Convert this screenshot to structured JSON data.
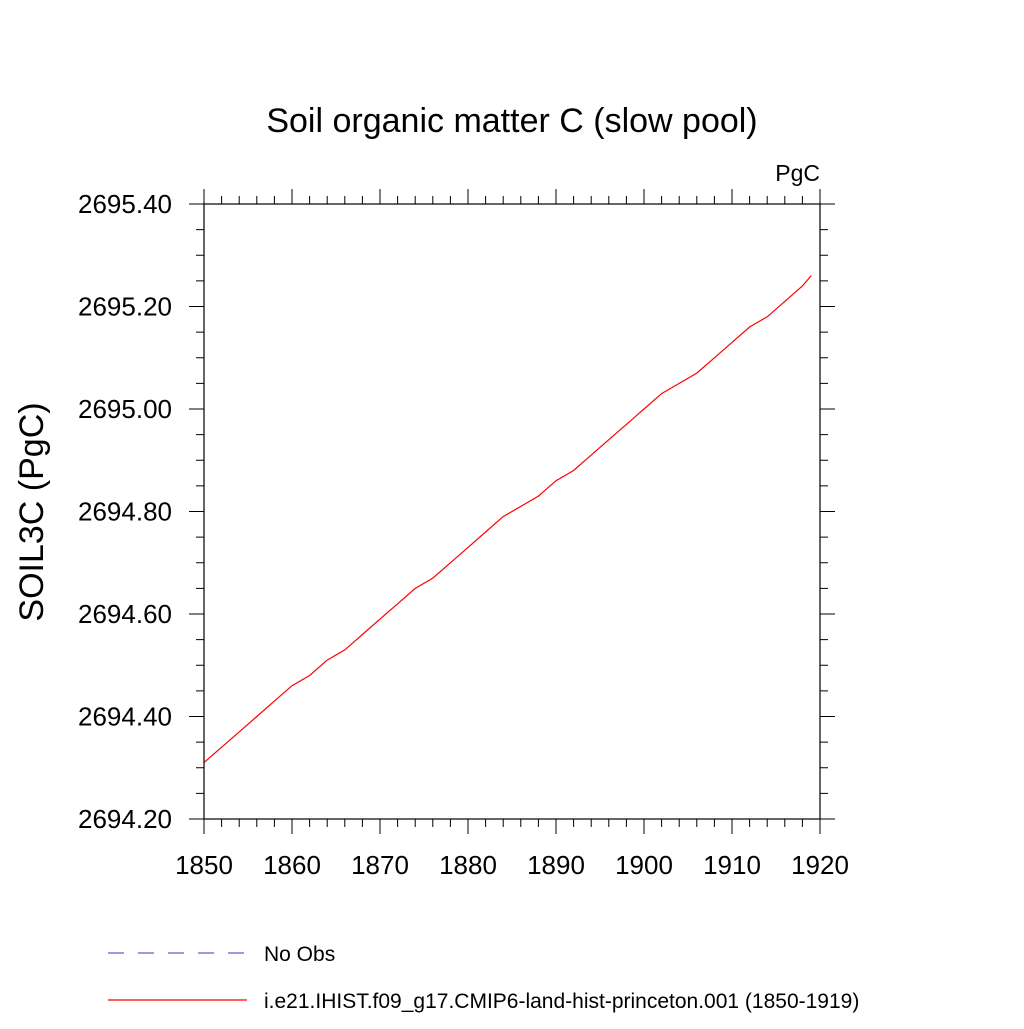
{
  "chart_data": {
    "type": "line",
    "title": "Soil organic matter C (slow pool)",
    "units_label": "PgC",
    "ylabel": "SOIL3C  (PgC)",
    "xlabel": "",
    "xlim": [
      1850,
      1920
    ],
    "ylim": [
      2694.2,
      2695.4
    ],
    "x_ticks": [
      1850,
      1860,
      1870,
      1880,
      1890,
      1900,
      1910,
      1920
    ],
    "x_tick_labels": [
      "1850",
      "1860",
      "1870",
      "1880",
      "1890",
      "1900",
      "1910",
      "1920"
    ],
    "y_ticks": [
      2694.2,
      2694.4,
      2694.6,
      2694.8,
      2695.0,
      2695.2,
      2695.4
    ],
    "y_tick_labels": [
      "2694.20",
      "2694.40",
      "2694.60",
      "2694.80",
      "2695.00",
      "2695.20",
      "2695.40"
    ],
    "x_minor_step": 2,
    "y_minor_step": 0.05,
    "grid": false,
    "legend_position": "bottom",
    "series": [
      {
        "name": "i.e21.IHIST.f09_g17.CMIP6-land-hist-princeton.001 (1850-1919)",
        "color": "#ff0000",
        "style": "solid",
        "x": [
          1850,
          1852,
          1854,
          1856,
          1858,
          1860,
          1862,
          1864,
          1866,
          1868,
          1870,
          1872,
          1874,
          1876,
          1878,
          1880,
          1882,
          1884,
          1886,
          1888,
          1890,
          1892,
          1894,
          1896,
          1898,
          1900,
          1902,
          1904,
          1906,
          1908,
          1910,
          1912,
          1914,
          1916,
          1918,
          1919
        ],
        "y": [
          2694.31,
          2694.34,
          2694.37,
          2694.4,
          2694.43,
          2694.46,
          2694.48,
          2694.51,
          2694.53,
          2694.56,
          2694.59,
          2694.62,
          2694.65,
          2694.67,
          2694.7,
          2694.73,
          2694.76,
          2694.79,
          2694.81,
          2694.83,
          2694.86,
          2694.88,
          2694.91,
          2694.94,
          2694.97,
          2695.0,
          2695.03,
          2695.05,
          2695.07,
          2695.1,
          2695.13,
          2695.16,
          2695.18,
          2695.21,
          2695.24,
          2695.26
        ]
      }
    ],
    "legend": [
      {
        "label": "No Obs",
        "color": "#6a5acd",
        "style": "dashed"
      },
      {
        "label": "i.e21.IHIST.f09_g17.CMIP6-land-hist-princeton.001 (1850-1919)",
        "color": "#ff0000",
        "style": "solid"
      }
    ]
  }
}
